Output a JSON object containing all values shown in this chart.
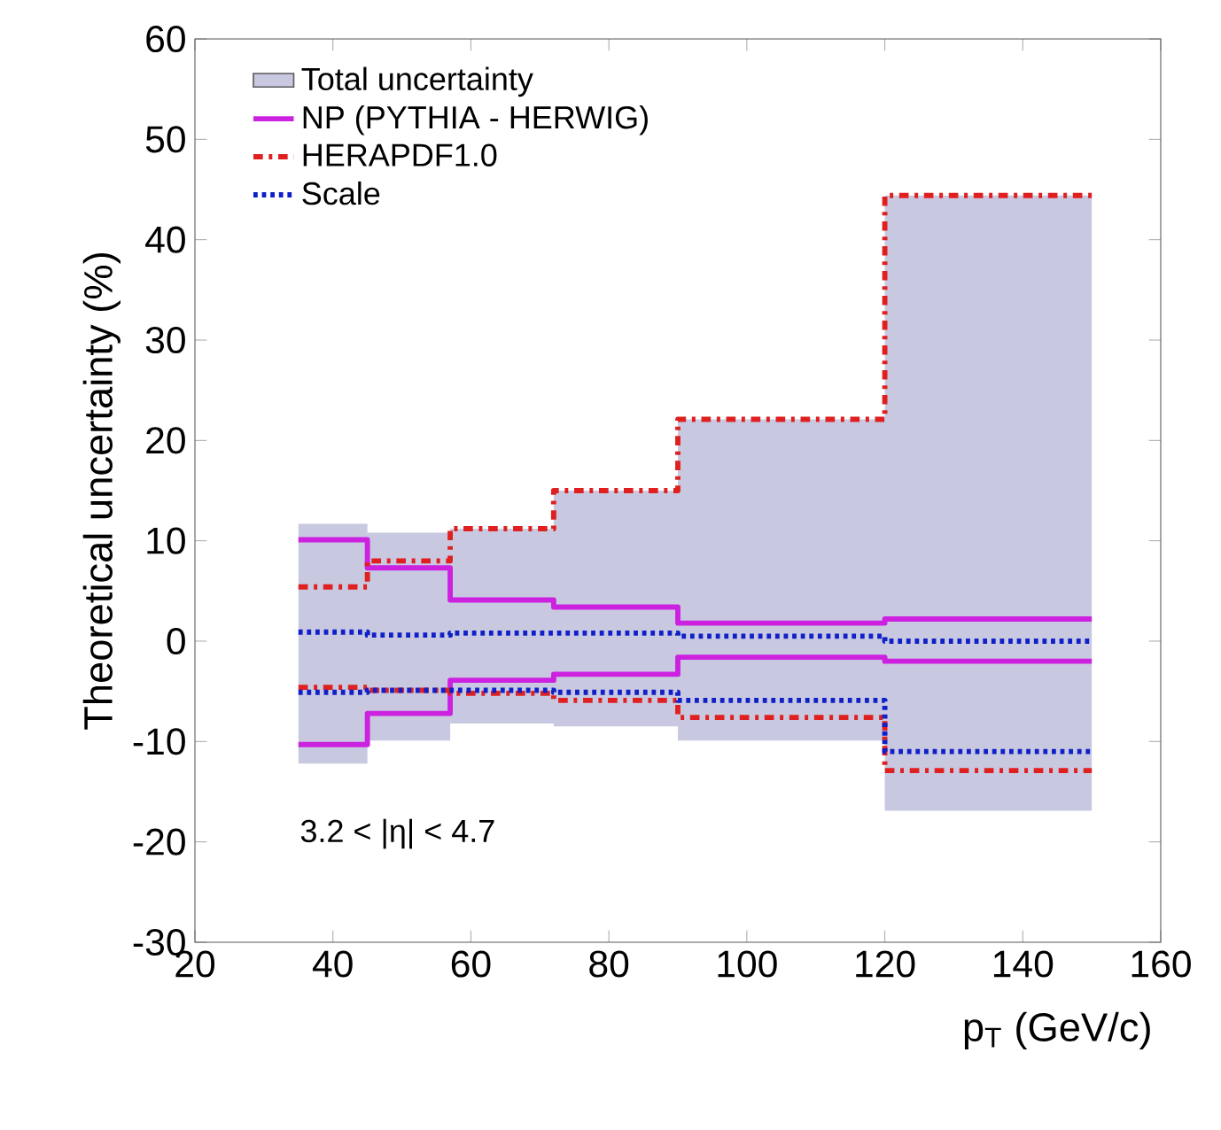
{
  "chart_data": {
    "type": "step",
    "xlabel": "p$_{T}$ (GeV/c)",
    "ylabel": "Theoretical uncertainty (%)",
    "x": [
      35,
      45,
      57,
      72,
      90,
      120,
      150
    ],
    "series": [
      {
        "name": "Total uncertainty",
        "type": "area",
        "color": "#c8c9e1",
        "values": [
          11.7,
          10.8,
          11.2,
          15.0,
          22.1,
          44.4,
          44.4
        ]
      },
      {
        "type": "area",
        "color": "#c8c9e1",
        "values": [
          -12.2,
          -9.9,
          -8.2,
          -8.5,
          -9.9,
          -16.9,
          -16.9
        ]
      },
      {
        "name": "NP (PYTHIA - HERWIG)",
        "color": "#cc22e0",
        "line_style": "solid",
        "values": [
          10.1,
          7.3,
          4.1,
          3.4,
          1.8,
          2.2,
          2.2
        ]
      },
      {
        "color": "#cc22e0",
        "line_style": "solid",
        "values": [
          -10.3,
          -7.2,
          -3.9,
          -3.3,
          -1.6,
          -2.0,
          -2.0
        ]
      },
      {
        "name": "HERAPDF1.0",
        "color": "#e02020",
        "line_style": "dashdot",
        "values": [
          5.4,
          8.0,
          11.2,
          15.0,
          22.1,
          44.4,
          44.4
        ]
      },
      {
        "color": "#e02020",
        "line_style": "dashdot",
        "values": [
          -4.6,
          -4.9,
          -5.2,
          -5.9,
          -7.6,
          -12.9,
          -12.9
        ]
      },
      {
        "name": "Scale",
        "color": "#1020c8",
        "line_style": "dotted",
        "values": [
          0.9,
          0.6,
          0.8,
          0.8,
          0.5,
          0.0,
          0.0
        ]
      },
      {
        "color": "#1020c8",
        "line_style": "dotted",
        "values": [
          -5.1,
          -4.9,
          -4.9,
          -5.1,
          -5.9,
          -11.0,
          -11.0
        ]
      }
    ],
    "xlim": [
      20,
      160
    ],
    "ylim": [
      -30,
      60
    ],
    "xticks": [
      20,
      40,
      60,
      80,
      100,
      120,
      140,
      160
    ],
    "yticks": [
      -30,
      -20,
      -10,
      0,
      10,
      20,
      30,
      40,
      50,
      60
    ],
    "legend": "top left",
    "annotations": [
      "3.2 < |η| < 4.7"
    ]
  }
}
